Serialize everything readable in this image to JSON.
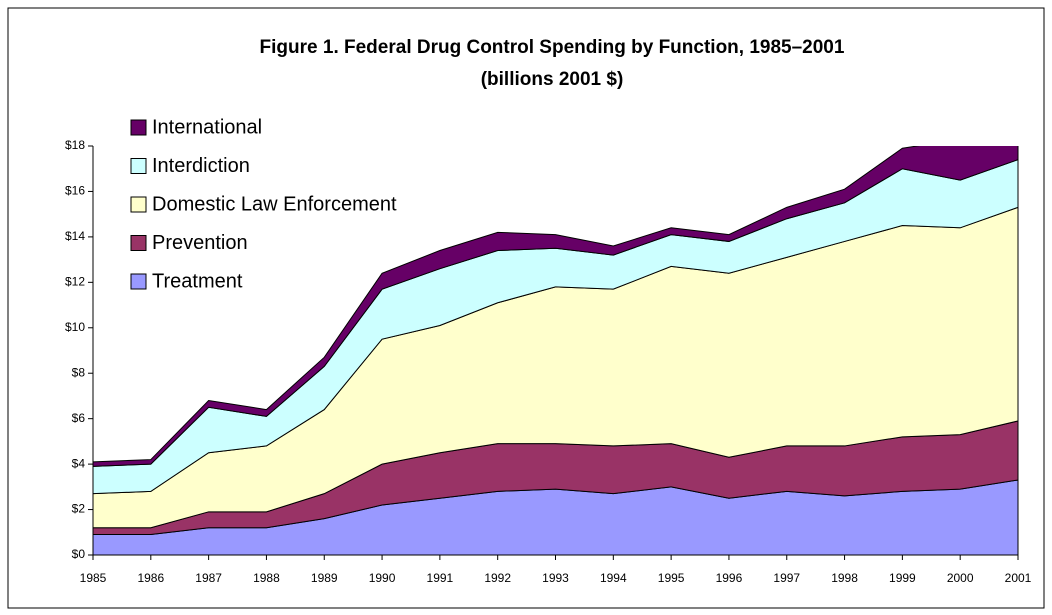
{
  "chart_data": {
    "type": "stacked_area",
    "title": "Figure 1.  Federal Drug Control Spending by Function, 1985–2001",
    "subtitle": "(billions 2001 $)",
    "categories": [
      "1985",
      "1986",
      "1987",
      "1988",
      "1989",
      "1990",
      "1991",
      "1992",
      "1993",
      "1994",
      "1995",
      "1996",
      "1997",
      "1998",
      "1999",
      "2000",
      "2001"
    ],
    "series": [
      {
        "name": "Treatment",
        "color": "#9999ff",
        "values": [
          0.9,
          0.9,
          1.2,
          1.2,
          1.6,
          2.2,
          2.5,
          2.8,
          2.9,
          2.7,
          3.0,
          2.5,
          2.8,
          2.6,
          2.8,
          2.9,
          3.3
        ]
      },
      {
        "name": "Prevention",
        "color": "#993366",
        "values": [
          0.3,
          0.3,
          0.7,
          0.7,
          1.1,
          1.8,
          2.0,
          2.1,
          2.0,
          2.1,
          1.9,
          1.8,
          2.0,
          2.2,
          2.4,
          2.4,
          2.6
        ]
      },
      {
        "name": "Domestic Law Enforcement",
        "color": "#ffffcc",
        "values": [
          1.5,
          1.6,
          2.6,
          2.9,
          3.7,
          5.5,
          5.6,
          6.2,
          6.9,
          6.9,
          7.8,
          8.1,
          8.3,
          9.0,
          9.3,
          9.1,
          9.4
        ]
      },
      {
        "name": "Interdiction",
        "color": "#ccffff",
        "values": [
          1.2,
          1.2,
          2.0,
          1.3,
          1.9,
          2.2,
          2.5,
          2.3,
          1.7,
          1.5,
          1.4,
          1.4,
          1.7,
          1.7,
          2.5,
          2.1,
          2.1
        ]
      },
      {
        "name": "International",
        "color": "#660066",
        "values": [
          0.2,
          0.2,
          0.3,
          0.3,
          0.4,
          0.7,
          0.8,
          0.8,
          0.6,
          0.4,
          0.3,
          0.3,
          0.5,
          0.6,
          0.9,
          1.8,
          0.9
        ]
      }
    ],
    "ylim": [
      0,
      18
    ],
    "yticks": [
      {
        "value": 0,
        "label": "$0"
      },
      {
        "value": 2,
        "label": "$2"
      },
      {
        "value": 4,
        "label": "$4"
      },
      {
        "value": 6,
        "label": "$6"
      },
      {
        "value": 8,
        "label": "$8"
      },
      {
        "value": 10,
        "label": "$10"
      },
      {
        "value": 12,
        "label": "$12"
      },
      {
        "value": 14,
        "label": "$14"
      },
      {
        "value": 16,
        "label": "$16"
      },
      {
        "value": 18,
        "label": "$18"
      }
    ],
    "legend": "upper left"
  }
}
